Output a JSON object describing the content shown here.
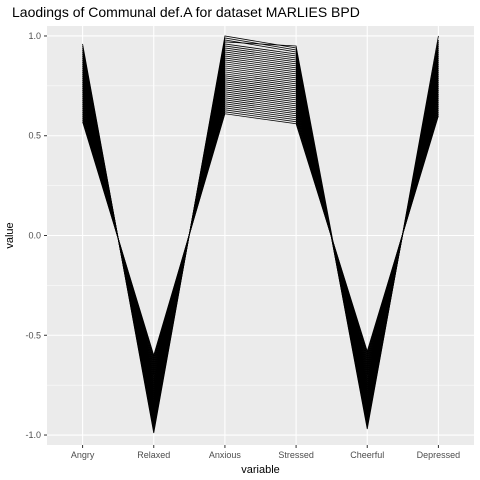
{
  "chart_data": {
    "type": "line",
    "title": "Laodings of Communal def.A for dataset MARLIES BPD",
    "xlabel": "variable",
    "ylabel": "value",
    "categories": [
      "Angry",
      "Relaxed",
      "Anxious",
      "Stressed",
      "Cheerful",
      "Depressed"
    ],
    "ylim": [
      -1.05,
      1.05
    ],
    "yticks": [
      {
        "value": 1.0,
        "label": "1.0"
      },
      {
        "value": 0.5,
        "label": "0.5"
      },
      {
        "value": 0.0,
        "label": "0.0"
      },
      {
        "value": -0.5,
        "label": "-0.5"
      },
      {
        "value": -1.0,
        "label": "-1.0"
      }
    ],
    "grid": true,
    "panel_background": "#ebebeb",
    "grid_color": "#ffffff",
    "line_color": "#000000",
    "series": [
      {
        "values": [
          0.96,
          -0.99,
          1.0,
          0.94,
          -0.97,
          1.0
        ]
      },
      {
        "values": [
          0.95,
          -0.98,
          0.99,
          0.93,
          -0.96,
          0.98
        ]
      },
      {
        "values": [
          0.94,
          -0.97,
          0.98,
          0.92,
          -0.95,
          0.97
        ]
      },
      {
        "values": [
          0.93,
          -0.96,
          0.97,
          0.95,
          -0.94,
          0.96
        ]
      },
      {
        "values": [
          0.92,
          -0.95,
          0.96,
          0.91,
          -0.93,
          0.95
        ]
      },
      {
        "values": [
          0.91,
          -0.94,
          0.95,
          0.9,
          -0.92,
          0.94
        ]
      },
      {
        "values": [
          0.9,
          -0.93,
          0.94,
          0.89,
          -0.91,
          0.93
        ]
      },
      {
        "values": [
          0.89,
          -0.92,
          0.93,
          0.88,
          -0.9,
          0.92
        ]
      },
      {
        "values": [
          0.88,
          -0.91,
          0.92,
          0.87,
          -0.89,
          0.91
        ]
      },
      {
        "values": [
          0.87,
          -0.9,
          0.91,
          0.86,
          -0.88,
          0.9
        ]
      },
      {
        "values": [
          0.86,
          -0.89,
          0.9,
          0.85,
          -0.87,
          0.89
        ]
      },
      {
        "values": [
          0.85,
          -0.88,
          0.89,
          0.84,
          -0.86,
          0.88
        ]
      },
      {
        "values": [
          0.84,
          -0.87,
          0.88,
          0.83,
          -0.85,
          0.87
        ]
      },
      {
        "values": [
          0.83,
          -0.86,
          0.87,
          0.82,
          -0.84,
          0.86
        ]
      },
      {
        "values": [
          0.82,
          -0.85,
          0.86,
          0.81,
          -0.83,
          0.85
        ]
      },
      {
        "values": [
          0.81,
          -0.84,
          0.85,
          0.8,
          -0.82,
          0.84
        ]
      },
      {
        "values": [
          0.8,
          -0.83,
          0.84,
          0.79,
          -0.81,
          0.83
        ]
      },
      {
        "values": [
          0.79,
          -0.82,
          0.83,
          0.78,
          -0.8,
          0.82
        ]
      },
      {
        "values": [
          0.78,
          -0.81,
          0.82,
          0.77,
          -0.79,
          0.81
        ]
      },
      {
        "values": [
          0.77,
          -0.8,
          0.81,
          0.76,
          -0.78,
          0.8
        ]
      },
      {
        "values": [
          0.76,
          -0.79,
          0.8,
          0.75,
          -0.77,
          0.79
        ]
      },
      {
        "values": [
          0.75,
          -0.78,
          0.79,
          0.74,
          -0.76,
          0.78
        ]
      },
      {
        "values": [
          0.74,
          -0.77,
          0.78,
          0.73,
          -0.75,
          0.77
        ]
      },
      {
        "values": [
          0.73,
          -0.76,
          0.77,
          0.72,
          -0.74,
          0.76
        ]
      },
      {
        "values": [
          0.72,
          -0.75,
          0.76,
          0.71,
          -0.73,
          0.75
        ]
      },
      {
        "values": [
          0.71,
          -0.74,
          0.75,
          0.7,
          -0.72,
          0.74
        ]
      },
      {
        "values": [
          0.7,
          -0.73,
          0.74,
          0.69,
          -0.71,
          0.73
        ]
      },
      {
        "values": [
          0.69,
          -0.72,
          0.73,
          0.68,
          -0.7,
          0.72
        ]
      },
      {
        "values": [
          0.68,
          -0.71,
          0.72,
          0.67,
          -0.69,
          0.71
        ]
      },
      {
        "values": [
          0.67,
          -0.7,
          0.71,
          0.66,
          -0.68,
          0.7
        ]
      },
      {
        "values": [
          0.66,
          -0.69,
          0.7,
          0.65,
          -0.67,
          0.69
        ]
      },
      {
        "values": [
          0.65,
          -0.68,
          0.69,
          0.64,
          -0.66,
          0.68
        ]
      },
      {
        "values": [
          0.64,
          -0.67,
          0.68,
          0.63,
          -0.65,
          0.67
        ]
      },
      {
        "values": [
          0.63,
          -0.66,
          0.67,
          0.62,
          -0.64,
          0.66
        ]
      },
      {
        "values": [
          0.62,
          -0.65,
          0.66,
          0.61,
          -0.63,
          0.65
        ]
      },
      {
        "values": [
          0.61,
          -0.64,
          0.65,
          0.6,
          -0.62,
          0.64
        ]
      },
      {
        "values": [
          0.6,
          -0.63,
          0.64,
          0.59,
          -0.61,
          0.63
        ]
      },
      {
        "values": [
          0.59,
          -0.62,
          0.63,
          0.58,
          -0.6,
          0.62
        ]
      },
      {
        "values": [
          0.58,
          -0.61,
          0.62,
          0.57,
          -0.59,
          0.61
        ]
      },
      {
        "values": [
          0.57,
          -0.6,
          0.61,
          0.56,
          -0.58,
          0.6
        ]
      }
    ]
  }
}
